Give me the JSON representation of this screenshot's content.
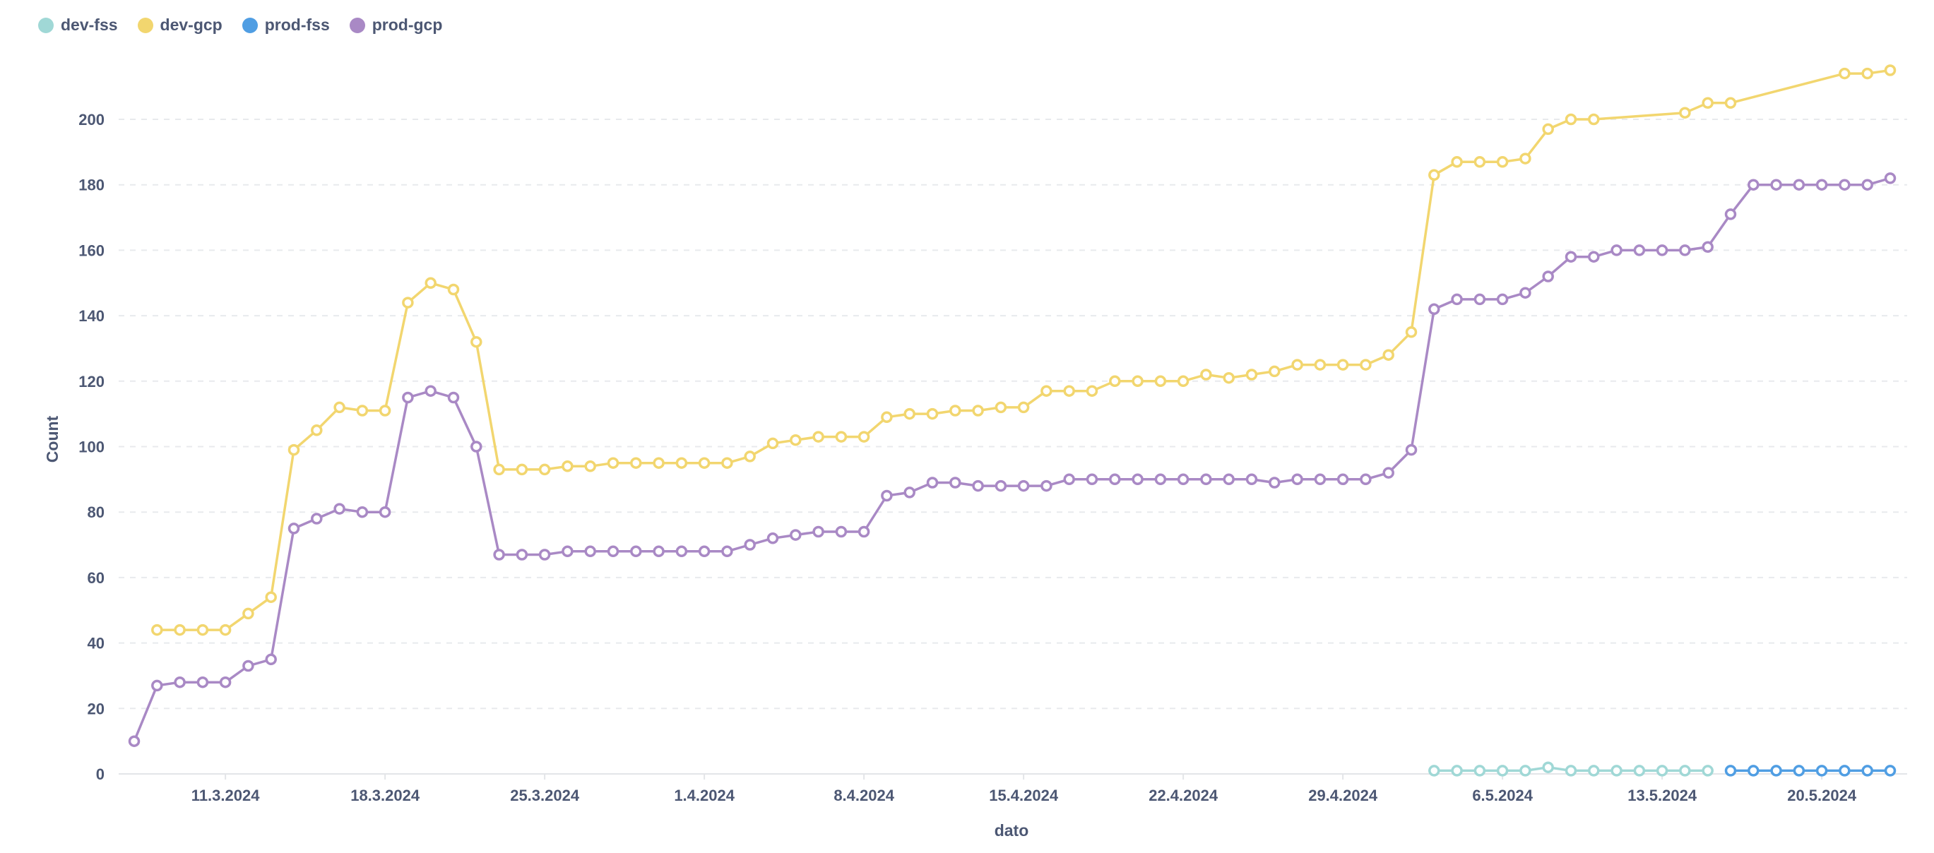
{
  "chart_data": {
    "type": "line",
    "xlabel": "dato",
    "ylabel": "Count",
    "ylim": [
      0,
      215
    ],
    "yticks": [
      0,
      20,
      40,
      60,
      80,
      100,
      120,
      140,
      160,
      180,
      200
    ],
    "x_tick_labels": [
      "11.3.2024",
      "18.3.2024",
      "25.3.2024",
      "1.4.2024",
      "8.4.2024",
      "15.4.2024",
      "22.4.2024",
      "29.4.2024",
      "6.5.2024",
      "13.5.2024",
      "20.5.2024"
    ],
    "x_tick_dates": [
      "2024-03-11",
      "2024-03-18",
      "2024-03-25",
      "2024-04-01",
      "2024-04-08",
      "2024-04-15",
      "2024-04-22",
      "2024-04-29",
      "2024-05-06",
      "2024-05-13",
      "2024-05-20"
    ],
    "x_range": [
      "2024-03-07",
      "2024-05-23"
    ],
    "legend_position": "top-left",
    "grid": true,
    "series": [
      {
        "name": "dev-fss",
        "color": "#A0D8D6",
        "points": [
          [
            "2024-05-03",
            1
          ],
          [
            "2024-05-04",
            1
          ],
          [
            "2024-05-05",
            1
          ],
          [
            "2024-05-06",
            1
          ],
          [
            "2024-05-07",
            1
          ],
          [
            "2024-05-08",
            2
          ],
          [
            "2024-05-09",
            1
          ],
          [
            "2024-05-10",
            1
          ],
          [
            "2024-05-11",
            1
          ],
          [
            "2024-05-12",
            1
          ],
          [
            "2024-05-13",
            1
          ],
          [
            "2024-05-14",
            1
          ],
          [
            "2024-05-15",
            1
          ]
        ]
      },
      {
        "name": "dev-gcp",
        "color": "#F2D66F",
        "points": [
          [
            "2024-03-08",
            44
          ],
          [
            "2024-03-09",
            44
          ],
          [
            "2024-03-10",
            44
          ],
          [
            "2024-03-11",
            44
          ],
          [
            "2024-03-12",
            49
          ],
          [
            "2024-03-13",
            54
          ],
          [
            "2024-03-14",
            99
          ],
          [
            "2024-03-15",
            105
          ],
          [
            "2024-03-16",
            112
          ],
          [
            "2024-03-17",
            111
          ],
          [
            "2024-03-18",
            111
          ],
          [
            "2024-03-19",
            144
          ],
          [
            "2024-03-20",
            150
          ],
          [
            "2024-03-21",
            148
          ],
          [
            "2024-03-22",
            132
          ],
          [
            "2024-03-23",
            93
          ],
          [
            "2024-03-24",
            93
          ],
          [
            "2024-03-25",
            93
          ],
          [
            "2024-03-26",
            94
          ],
          [
            "2024-03-27",
            94
          ],
          [
            "2024-03-28",
            95
          ],
          [
            "2024-03-29",
            95
          ],
          [
            "2024-03-30",
            95
          ],
          [
            "2024-03-31",
            95
          ],
          [
            "2024-04-01",
            95
          ],
          [
            "2024-04-02",
            95
          ],
          [
            "2024-04-03",
            97
          ],
          [
            "2024-04-04",
            101
          ],
          [
            "2024-04-05",
            102
          ],
          [
            "2024-04-06",
            103
          ],
          [
            "2024-04-07",
            103
          ],
          [
            "2024-04-08",
            103
          ],
          [
            "2024-04-09",
            109
          ],
          [
            "2024-04-10",
            110
          ],
          [
            "2024-04-11",
            110
          ],
          [
            "2024-04-12",
            111
          ],
          [
            "2024-04-13",
            111
          ],
          [
            "2024-04-14",
            112
          ],
          [
            "2024-04-15",
            112
          ],
          [
            "2024-04-16",
            117
          ],
          [
            "2024-04-17",
            117
          ],
          [
            "2024-04-18",
            117
          ],
          [
            "2024-04-19",
            120
          ],
          [
            "2024-04-20",
            120
          ],
          [
            "2024-04-21",
            120
          ],
          [
            "2024-04-22",
            120
          ],
          [
            "2024-04-23",
            122
          ],
          [
            "2024-04-24",
            121
          ],
          [
            "2024-04-25",
            122
          ],
          [
            "2024-04-26",
            123
          ],
          [
            "2024-04-27",
            125
          ],
          [
            "2024-04-28",
            125
          ],
          [
            "2024-04-29",
            125
          ],
          [
            "2024-04-30",
            125
          ],
          [
            "2024-05-01",
            128
          ],
          [
            "2024-05-02",
            135
          ],
          [
            "2024-05-03",
            183
          ],
          [
            "2024-05-04",
            187
          ],
          [
            "2024-05-05",
            187
          ],
          [
            "2024-05-06",
            187
          ],
          [
            "2024-05-07",
            188
          ],
          [
            "2024-05-08",
            197
          ],
          [
            "2024-05-09",
            200
          ],
          [
            "2024-05-10",
            200
          ],
          [
            "2024-05-14",
            202
          ],
          [
            "2024-05-15",
            205
          ],
          [
            "2024-05-16",
            205
          ],
          [
            "2024-05-21",
            214
          ],
          [
            "2024-05-22",
            214
          ],
          [
            "2024-05-23",
            215
          ]
        ]
      },
      {
        "name": "prod-fss",
        "color": "#509EE3",
        "points": [
          [
            "2024-05-16",
            1
          ],
          [
            "2024-05-17",
            1
          ],
          [
            "2024-05-18",
            1
          ],
          [
            "2024-05-19",
            1
          ],
          [
            "2024-05-20",
            1
          ],
          [
            "2024-05-21",
            1
          ],
          [
            "2024-05-22",
            1
          ],
          [
            "2024-05-23",
            1
          ]
        ]
      },
      {
        "name": "prod-gcp",
        "color": "#A989C5",
        "points": [
          [
            "2024-03-07",
            10
          ],
          [
            "2024-03-08",
            27
          ],
          [
            "2024-03-09",
            28
          ],
          [
            "2024-03-10",
            28
          ],
          [
            "2024-03-11",
            28
          ],
          [
            "2024-03-12",
            33
          ],
          [
            "2024-03-13",
            35
          ],
          [
            "2024-03-14",
            75
          ],
          [
            "2024-03-15",
            78
          ],
          [
            "2024-03-16",
            81
          ],
          [
            "2024-03-17",
            80
          ],
          [
            "2024-03-18",
            80
          ],
          [
            "2024-03-19",
            115
          ],
          [
            "2024-03-20",
            117
          ],
          [
            "2024-03-21",
            115
          ],
          [
            "2024-03-22",
            100
          ],
          [
            "2024-03-23",
            67
          ],
          [
            "2024-03-24",
            67
          ],
          [
            "2024-03-25",
            67
          ],
          [
            "2024-03-26",
            68
          ],
          [
            "2024-03-27",
            68
          ],
          [
            "2024-03-28",
            68
          ],
          [
            "2024-03-29",
            68
          ],
          [
            "2024-03-30",
            68
          ],
          [
            "2024-03-31",
            68
          ],
          [
            "2024-04-01",
            68
          ],
          [
            "2024-04-02",
            68
          ],
          [
            "2024-04-03",
            70
          ],
          [
            "2024-04-04",
            72
          ],
          [
            "2024-04-05",
            73
          ],
          [
            "2024-04-06",
            74
          ],
          [
            "2024-04-07",
            74
          ],
          [
            "2024-04-08",
            74
          ],
          [
            "2024-04-09",
            85
          ],
          [
            "2024-04-10",
            86
          ],
          [
            "2024-04-11",
            89
          ],
          [
            "2024-04-12",
            89
          ],
          [
            "2024-04-13",
            88
          ],
          [
            "2024-04-14",
            88
          ],
          [
            "2024-04-15",
            88
          ],
          [
            "2024-04-16",
            88
          ],
          [
            "2024-04-17",
            90
          ],
          [
            "2024-04-18",
            90
          ],
          [
            "2024-04-19",
            90
          ],
          [
            "2024-04-20",
            90
          ],
          [
            "2024-04-21",
            90
          ],
          [
            "2024-04-22",
            90
          ],
          [
            "2024-04-23",
            90
          ],
          [
            "2024-04-24",
            90
          ],
          [
            "2024-04-25",
            90
          ],
          [
            "2024-04-26",
            89
          ],
          [
            "2024-04-27",
            90
          ],
          [
            "2024-04-28",
            90
          ],
          [
            "2024-04-29",
            90
          ],
          [
            "2024-04-30",
            90
          ],
          [
            "2024-05-01",
            92
          ],
          [
            "2024-05-02",
            99
          ],
          [
            "2024-05-03",
            142
          ],
          [
            "2024-05-04",
            145
          ],
          [
            "2024-05-05",
            145
          ],
          [
            "2024-05-06",
            145
          ],
          [
            "2024-05-07",
            147
          ],
          [
            "2024-05-08",
            152
          ],
          [
            "2024-05-09",
            158
          ],
          [
            "2024-05-10",
            158
          ],
          [
            "2024-05-11",
            160
          ],
          [
            "2024-05-12",
            160
          ],
          [
            "2024-05-13",
            160
          ],
          [
            "2024-05-14",
            160
          ],
          [
            "2024-05-15",
            161
          ],
          [
            "2024-05-16",
            171
          ],
          [
            "2024-05-17",
            180
          ],
          [
            "2024-05-18",
            180
          ],
          [
            "2024-05-19",
            180
          ],
          [
            "2024-05-20",
            180
          ],
          [
            "2024-05-21",
            180
          ],
          [
            "2024-05-22",
            180
          ],
          [
            "2024-05-23",
            182
          ]
        ]
      }
    ]
  }
}
